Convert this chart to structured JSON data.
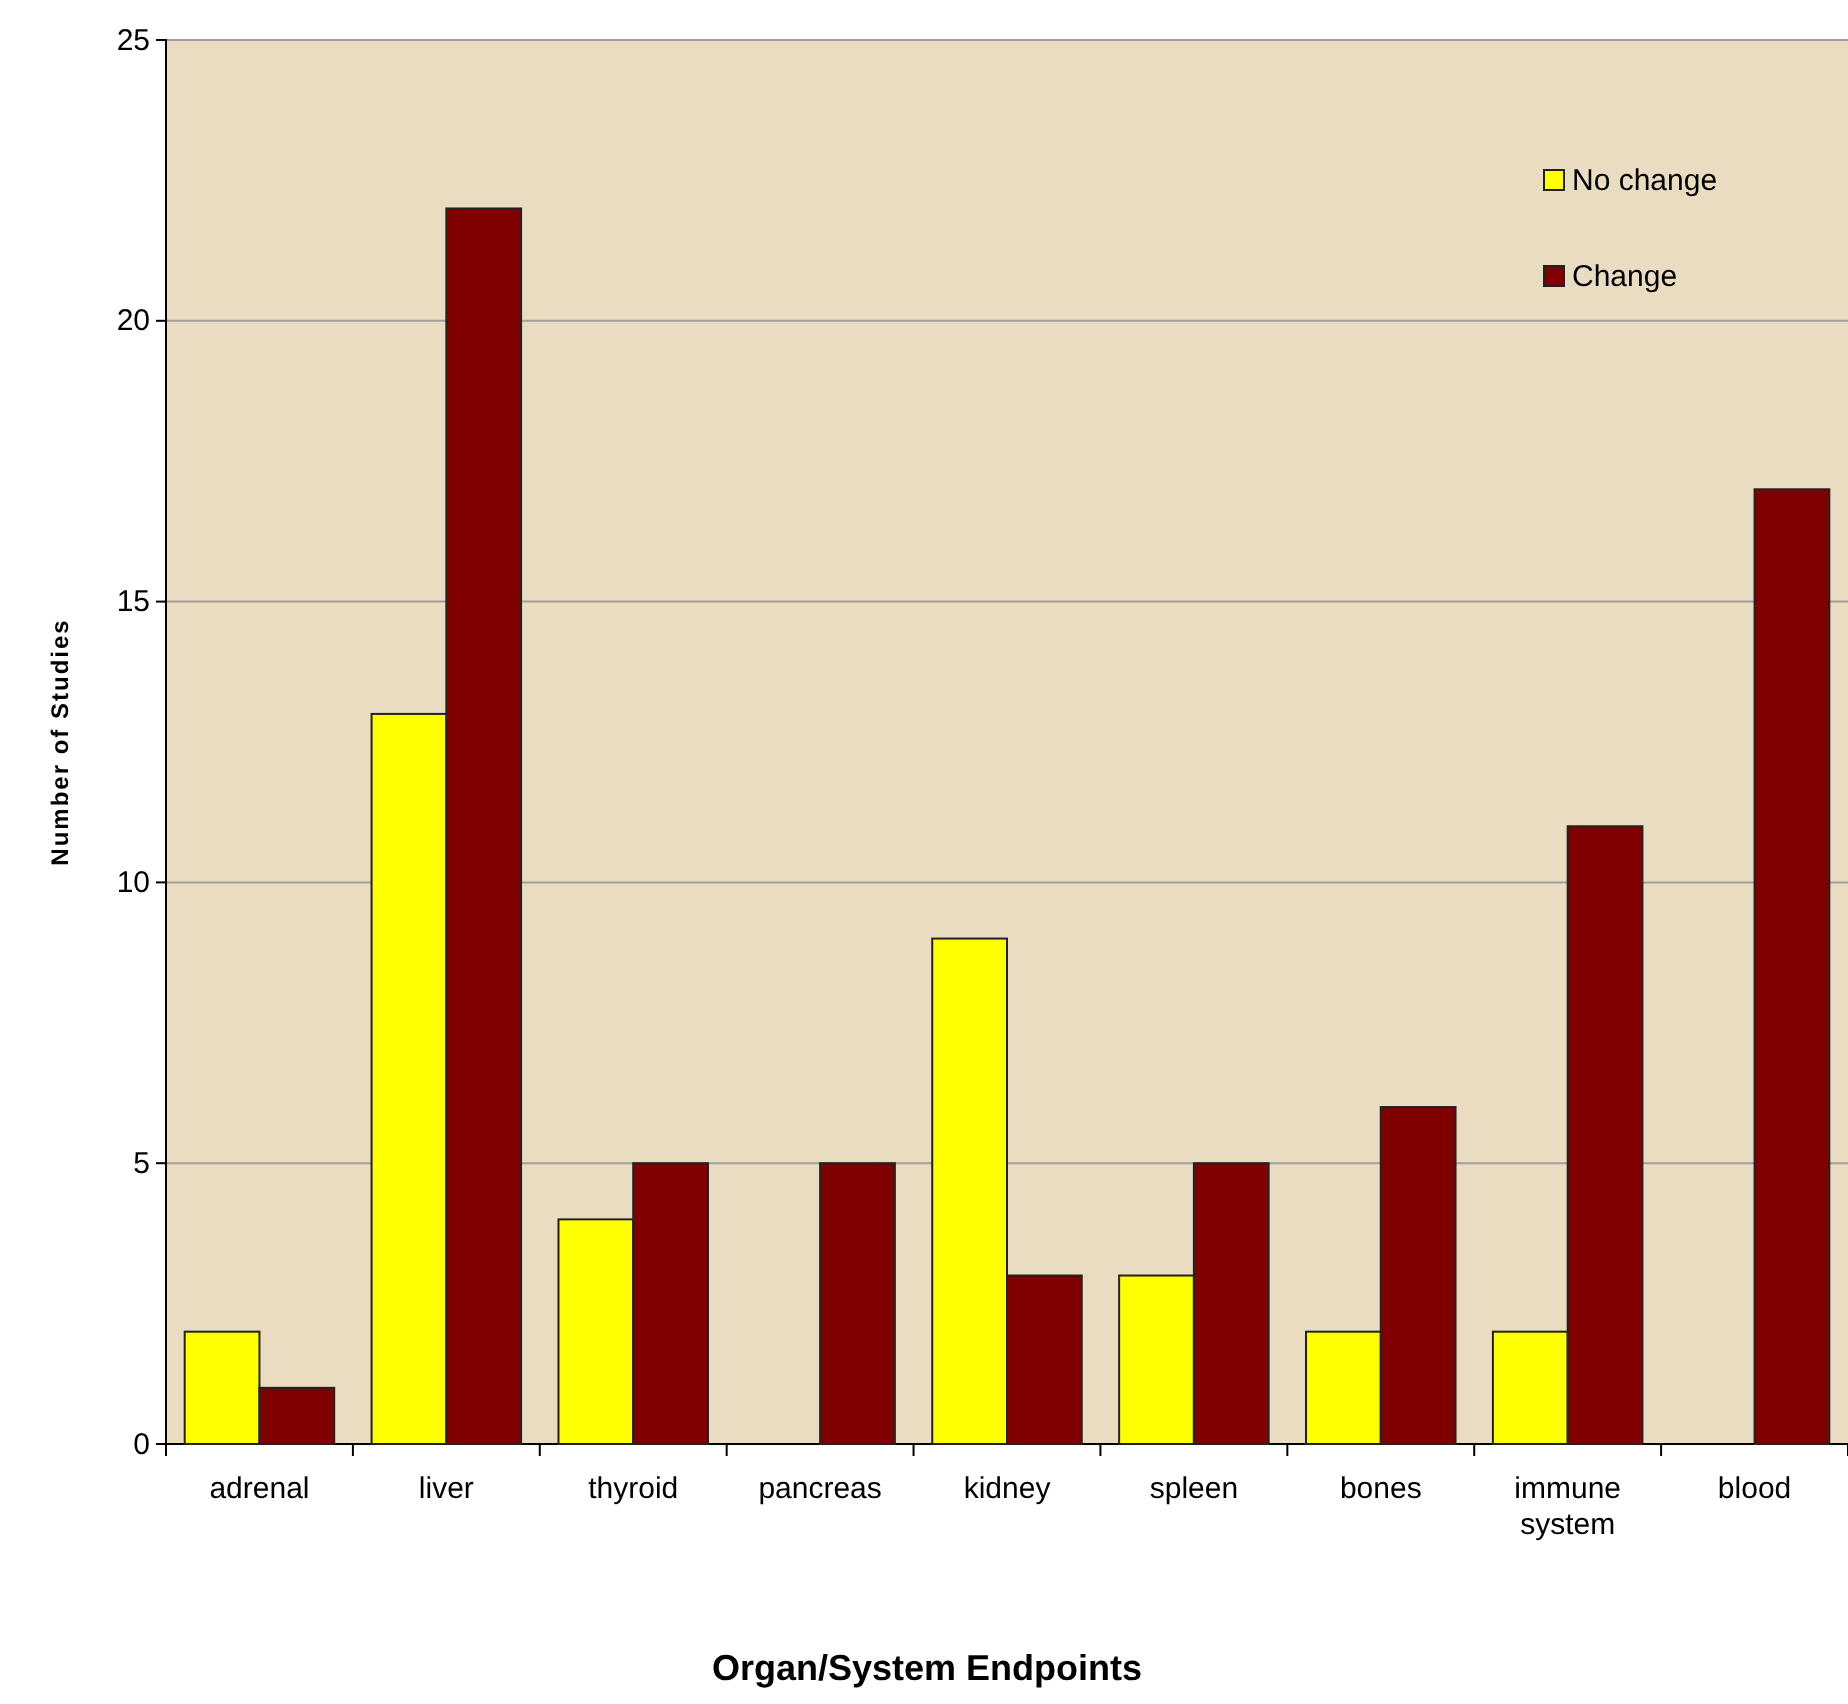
{
  "chart_data": {
    "type": "bar",
    "xlabel": "Organ/System Endpoints",
    "ylabel": "Number of Studies",
    "categories": [
      "adrenal",
      "liver",
      "thyroid",
      "pancreas",
      "kidney",
      "spleen",
      "bones",
      "immune system",
      "blood"
    ],
    "series": [
      {
        "name": "No change",
        "color": "#ffff00",
        "values": [
          2,
          13,
          4,
          0,
          9,
          3,
          2,
          2,
          0
        ]
      },
      {
        "name": "Change",
        "color": "#800000",
        "values": [
          1,
          22,
          5,
          5,
          3,
          5,
          6,
          11,
          17
        ]
      }
    ],
    "ylim": [
      0,
      25
    ],
    "yticks": [
      0,
      5,
      10,
      15,
      20,
      25
    ],
    "grid": "y",
    "legend": "top right"
  }
}
